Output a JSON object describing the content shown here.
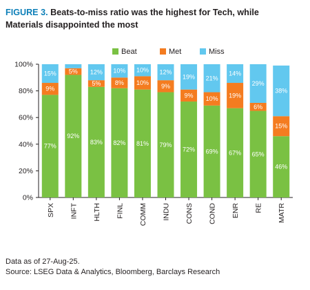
{
  "header": {
    "figure_label": "FIGURE 3.",
    "title_line1": "Beats-to-miss ratio was the highest for Tech, while",
    "title_line2": "Materials disappointed the most"
  },
  "footer": {
    "note": "Data as of 27-Aug-25.",
    "source": "Source: LSEG Data & Analytics, Bloomberg, Barclays Research"
  },
  "chart_data": {
    "type": "bar",
    "stacked": true,
    "categories": [
      "SPX",
      "INFT",
      "HLTH",
      "FINL",
      "COMM",
      "INDU",
      "CONS",
      "COND",
      "ENR",
      "RE",
      "MATR"
    ],
    "series": [
      {
        "name": "Beat",
        "color": "#7ac143",
        "values": [
          77,
          92,
          83,
          82,
          81,
          79,
          72,
          69,
          67,
          65,
          46
        ],
        "labels": [
          "77%",
          "92%",
          "83%",
          "82%",
          "81%",
          "79%",
          "72%",
          "69%",
          "67%",
          "65%",
          "46%"
        ]
      },
      {
        "name": "Met",
        "color": "#f47c20",
        "values": [
          9,
          5,
          5,
          8,
          10,
          9,
          9,
          10,
          19,
          6,
          15
        ],
        "labels": [
          "9%",
          "5%",
          "5%",
          "8%",
          "10%",
          "9%",
          "9%",
          "10%",
          "19%",
          "6%",
          "15%"
        ]
      },
      {
        "name": "Miss",
        "color": "#62c8ef",
        "values": [
          15,
          5,
          12,
          10,
          10,
          12,
          19,
          21,
          14,
          29,
          38
        ],
        "labels": [
          "15%",
          "",
          "12%",
          "10%",
          "10%",
          "12%",
          "19%",
          "21%",
          "14%",
          "29%",
          "38%"
        ]
      }
    ],
    "ylim": [
      0,
      100
    ],
    "yticks": [
      "0%",
      "20%",
      "40%",
      "60%",
      "80%",
      "100%"
    ],
    "ytick_values": [
      0,
      20,
      40,
      60,
      80,
      100
    ],
    "legend_position": "top"
  }
}
